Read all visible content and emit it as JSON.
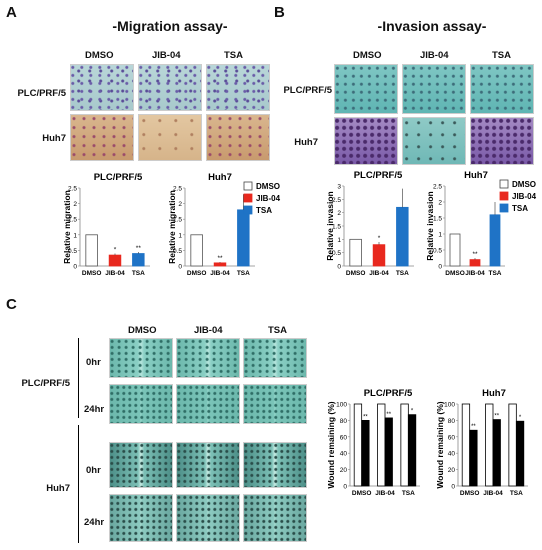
{
  "panels": {
    "a": {
      "letter": "A",
      "title": "-Migration assay-"
    },
    "b": {
      "letter": "B",
      "title": "-Invasion assay-"
    },
    "c": {
      "letter": "C"
    }
  },
  "conditions": [
    "DMSO",
    "JIB-04",
    "TSA"
  ],
  "cell_lines": {
    "plc": "PLC/PRF/5",
    "huh7": "Huh7"
  },
  "timepoints": {
    "t0": "0hr",
    "t24": "24hr"
  },
  "legend": {
    "dmso": "DMSO",
    "jib": "JIB-04",
    "tsa": "TSA"
  },
  "colors": {
    "dmso": "#ffffff",
    "jib": "#e8281e",
    "tsa": "#1f73c6",
    "black": "#000000"
  },
  "chart_data": [
    {
      "type": "bar",
      "title": "PLC/PRF/5",
      "ylabel": "Relative migration",
      "categories": [
        "DMSO",
        "JIB-04",
        "TSA"
      ],
      "values": [
        1.0,
        0.35,
        0.4
      ],
      "errors": [
        0,
        0.05,
        0.05
      ],
      "significance": [
        "",
        "*",
        "**"
      ],
      "ylim": [
        0,
        2.5
      ],
      "yticks": [
        "0",
        "0.5",
        "1",
        "1.5",
        "2",
        "2.5"
      ]
    },
    {
      "type": "bar",
      "title": "Huh7",
      "ylabel": "Relative migration",
      "categories": [
        "DMSO",
        "JIB-04",
        "TSA"
      ],
      "values": [
        1.0,
        0.1,
        1.8
      ],
      "errors": [
        0,
        0.03,
        0.5
      ],
      "significance": [
        "",
        "**",
        ""
      ],
      "ylim": [
        0,
        2.5
      ],
      "yticks": [
        "0",
        "0.5",
        "1",
        "1.5",
        "2",
        "2.5"
      ]
    },
    {
      "type": "bar",
      "title": "PLC/PRF/5",
      "ylabel": "Relative invasion",
      "categories": [
        "DMSO",
        "JIB-04",
        "TSA"
      ],
      "values": [
        1.0,
        0.8,
        2.2
      ],
      "errors": [
        0,
        0.1,
        0.7
      ],
      "significance": [
        "",
        "*",
        ""
      ],
      "ylim": [
        0,
        3
      ],
      "yticks": [
        "0",
        "0.5",
        "1",
        "1.5",
        "2",
        "2.5",
        "3"
      ]
    },
    {
      "type": "bar",
      "title": "Huh7",
      "ylabel": "Relative invasion",
      "categories": [
        "DMSO",
        "JIB-04",
        "TSA"
      ],
      "values": [
        1.0,
        0.2,
        1.6
      ],
      "errors": [
        0,
        0.05,
        0.4
      ],
      "significance": [
        "",
        "**",
        ""
      ],
      "ylim": [
        0,
        2.5
      ],
      "yticks": [
        "0",
        "0.5",
        "1",
        "1.5",
        "2",
        "2.5"
      ]
    },
    {
      "type": "bar",
      "title": "PLC/PRF/5",
      "ylabel": "Wound remaining (%)",
      "categories": [
        "DMSO",
        "JIB-04",
        "TSA"
      ],
      "series": [
        {
          "values": [
            100,
            100,
            100
          ]
        },
        {
          "values": [
            80,
            83,
            87
          ]
        }
      ],
      "significance": [
        "**",
        "**",
        "*"
      ],
      "ylim": [
        0,
        100
      ],
      "yticks": [
        "0",
        "20",
        "40",
        "60",
        "80",
        "100"
      ]
    },
    {
      "type": "bar",
      "title": "Huh7",
      "ylabel": "Wound remaining (%)",
      "categories": [
        "DMSO",
        "JIB-04",
        "TSA"
      ],
      "series": [
        {
          "values": [
            100,
            100,
            100
          ]
        },
        {
          "values": [
            68,
            81,
            79
          ]
        }
      ],
      "significance": [
        "**",
        "**",
        "*"
      ],
      "ylim": [
        0,
        100
      ],
      "yticks": [
        "0",
        "20",
        "40",
        "60",
        "80",
        "100"
      ]
    }
  ]
}
